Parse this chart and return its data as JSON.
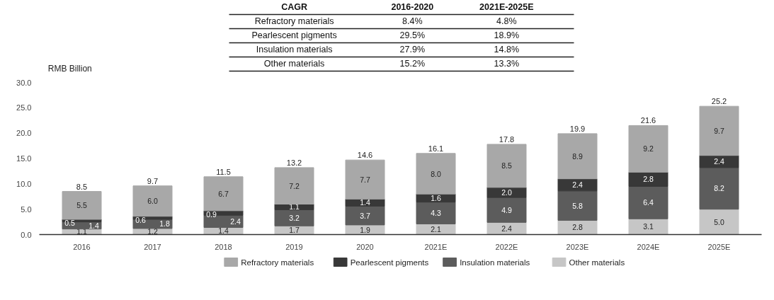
{
  "chart_data": {
    "type": "bar",
    "stacked": true,
    "ylabel": "RMB Billion",
    "categories": [
      "2016",
      "2017",
      "2018",
      "2019",
      "2020",
      "2021E",
      "2022E",
      "2023E",
      "2024E",
      "2025E"
    ],
    "series": [
      {
        "name": "Other materials",
        "color": "#c6c6c6",
        "values": [
          1.1,
          1.2,
          1.4,
          1.7,
          1.9,
          2.1,
          2.4,
          2.8,
          3.1,
          5.0
        ],
        "value_labels": [
          "1.1",
          "1.2",
          "1.4",
          "1.7",
          "1.9",
          "2.1",
          "2.4",
          "2.8",
          "3.1",
          "5.0"
        ]
      },
      {
        "name": "Insulation materials",
        "color": "#5c5c5c",
        "values": [
          1.4,
          1.8,
          2.4,
          3.2,
          3.7,
          4.3,
          4.9,
          5.8,
          6.4,
          8.2
        ],
        "value_labels": [
          "1.4",
          "1.8",
          "2.4",
          "3.2",
          "3.7",
          "4.3",
          "4.9",
          "5.8",
          "6.4",
          "8.2"
        ]
      },
      {
        "name": "Pearlescent pigments",
        "color": "#383838",
        "values": [
          0.5,
          0.6,
          0.9,
          1.1,
          1.4,
          1.6,
          2.0,
          2.4,
          2.8,
          2.4
        ],
        "value_labels": [
          "0.5",
          "0.6",
          "0.9",
          "1.1",
          "1.4",
          "1.6",
          "2.0",
          "2.4",
          "2.8",
          "2.4"
        ]
      },
      {
        "name": "Refractory materials",
        "color": "#a8a8a8",
        "values": [
          5.5,
          6.0,
          6.7,
          7.2,
          7.7,
          8.0,
          8.5,
          8.9,
          9.2,
          9.7
        ],
        "value_labels": [
          "5.5",
          "6.0",
          "6.7",
          "7.2",
          "7.7",
          "8.0",
          "8.5",
          "8.9",
          "9.2",
          "9.7"
        ]
      }
    ],
    "totals": [
      "8.5",
      "9.7",
      "11.5",
      "13.2",
      "14.6",
      "16.1",
      "17.8",
      "19.9",
      "21.6",
      "25.2"
    ],
    "ylim": [
      0,
      30
    ],
    "yticks": [
      {
        "value": 0,
        "label": "0.0"
      },
      {
        "value": 5,
        "label": "5.0"
      },
      {
        "value": 10,
        "label": "10.0"
      },
      {
        "value": 15,
        "label": "15.0"
      },
      {
        "value": 20,
        "label": "20.0"
      },
      {
        "value": 25,
        "label": "25.0"
      },
      {
        "value": 30,
        "label": "30.0"
      }
    ],
    "legend": "bottom",
    "annotations": [
      "CAGR",
      "2016-2020",
      "2021E-2025E",
      "Refractory materials",
      "8.4%",
      "4.8%",
      "Pearlescent pigments",
      "29.5%",
      "18.9%",
      "Insulation materials",
      "27.9%",
      "14.8%",
      "Other materials",
      "15.2%",
      "13.3%"
    ]
  }
}
